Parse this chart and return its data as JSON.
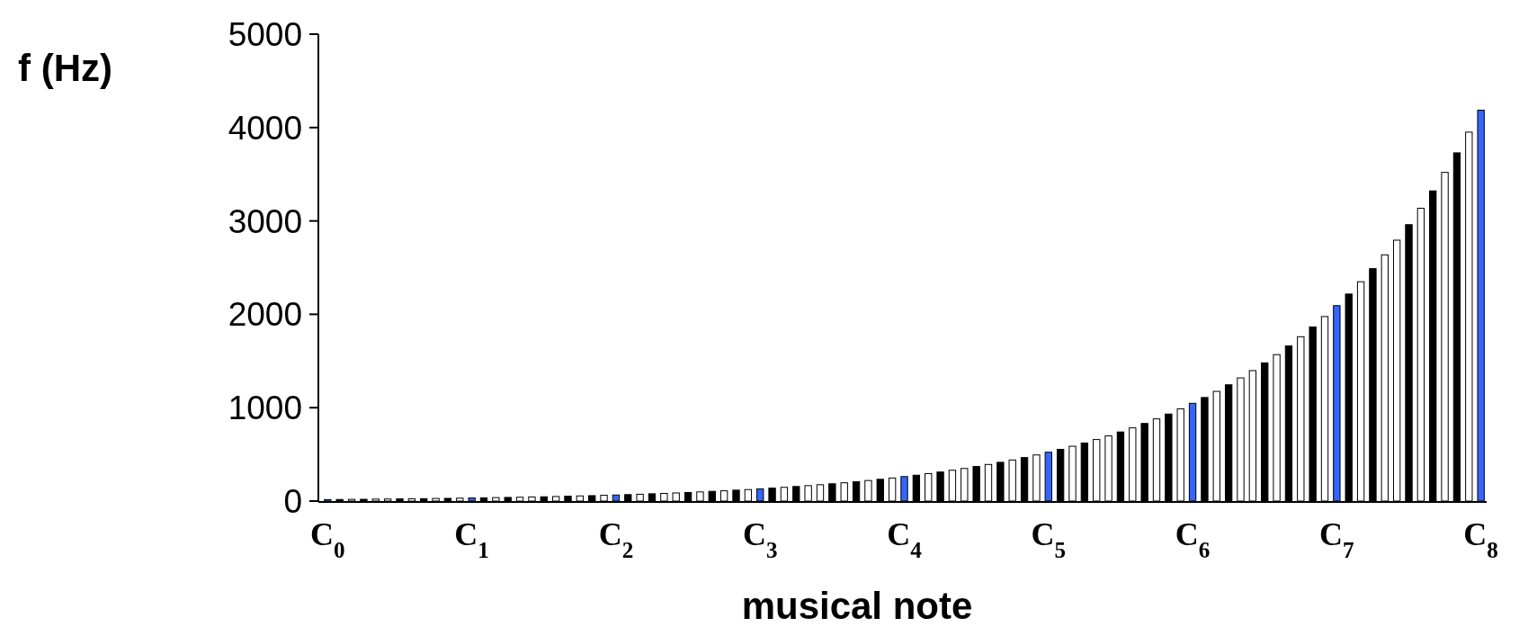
{
  "chart_data": {
    "type": "bar",
    "ylabel": "f (Hz)",
    "xlabel": "musical note",
    "categories": [
      "C$_{0}$",
      null,
      null,
      null,
      null,
      null,
      null,
      null,
      null,
      null,
      null,
      null,
      "C$_{1}$",
      null,
      null,
      null,
      null,
      null,
      null,
      null,
      null,
      null,
      null,
      null,
      "C$_{2}$",
      null,
      null,
      null,
      null,
      null,
      null,
      null,
      null,
      null,
      null,
      null,
      "C$_{3}$",
      null,
      null,
      null,
      null,
      null,
      null,
      null,
      null,
      null,
      null,
      null,
      "C$_{4}$",
      null,
      null,
      null,
      null,
      null,
      null,
      null,
      null,
      null,
      null,
      null,
      "C$_{5}$",
      null,
      null,
      null,
      null,
      null,
      null,
      null,
      null,
      null,
      null,
      null,
      "C$_{6}$",
      null,
      null,
      null,
      null,
      null,
      null,
      null,
      null,
      null,
      null,
      null,
      "C$_{7}$",
      null,
      null,
      null,
      null,
      null,
      null,
      null,
      null,
      null,
      null,
      null,
      "C$_{8}$"
    ],
    "values": [
      16,
      17,
      18,
      19,
      21,
      22,
      23,
      25,
      26,
      28,
      29,
      31,
      33,
      35,
      37,
      39,
      41,
      44,
      46,
      49,
      52,
      55,
      58,
      62,
      65,
      69,
      73,
      78,
      82,
      87,
      92,
      98,
      104,
      110,
      117,
      123,
      131,
      139,
      147,
      156,
      165,
      175,
      185,
      196,
      208,
      220,
      233,
      247,
      262,
      277,
      294,
      311,
      330,
      349,
      370,
      392,
      415,
      440,
      466,
      494,
      523,
      554,
      587,
      622,
      659,
      698,
      740,
      784,
      831,
      880,
      932,
      988,
      1047,
      1109,
      1175,
      1245,
      1319,
      1397,
      1480,
      1568,
      1661,
      1760,
      1865,
      1976,
      2093,
      2217,
      2349,
      2489,
      2637,
      2794,
      2960,
      3136,
      3322,
      3520,
      3729,
      3951,
      4186
    ],
    "colors": [
      "#3366ff",
      "#000000",
      "#ffffff",
      "#000000",
      "#ffffff",
      "#ffffff",
      "#000000",
      "#ffffff",
      "#000000",
      "#ffffff",
      "#000000",
      "#ffffff",
      "#3366ff",
      "#000000",
      "#ffffff",
      "#000000",
      "#ffffff",
      "#ffffff",
      "#000000",
      "#ffffff",
      "#000000",
      "#ffffff",
      "#000000",
      "#ffffff",
      "#3366ff",
      "#000000",
      "#ffffff",
      "#000000",
      "#ffffff",
      "#ffffff",
      "#000000",
      "#ffffff",
      "#000000",
      "#ffffff",
      "#000000",
      "#ffffff",
      "#3366ff",
      "#000000",
      "#ffffff",
      "#000000",
      "#ffffff",
      "#ffffff",
      "#000000",
      "#ffffff",
      "#000000",
      "#ffffff",
      "#000000",
      "#ffffff",
      "#3366ff",
      "#000000",
      "#ffffff",
      "#000000",
      "#ffffff",
      "#ffffff",
      "#000000",
      "#ffffff",
      "#000000",
      "#ffffff",
      "#000000",
      "#ffffff",
      "#3366ff",
      "#000000",
      "#ffffff",
      "#000000",
      "#ffffff",
      "#ffffff",
      "#000000",
      "#ffffff",
      "#000000",
      "#ffffff",
      "#000000",
      "#ffffff",
      "#3366ff",
      "#000000",
      "#ffffff",
      "#000000",
      "#ffffff",
      "#ffffff",
      "#000000",
      "#ffffff",
      "#000000",
      "#ffffff",
      "#000000",
      "#ffffff",
      "#3366ff",
      "#000000",
      "#ffffff",
      "#000000",
      "#ffffff",
      "#ffffff",
      "#000000",
      "#ffffff",
      "#000000",
      "#ffffff",
      "#000000",
      "#ffffff",
      "#3366ff"
    ],
    "ylim": [
      0,
      5000
    ],
    "yticks": [
      0,
      1000,
      2000,
      3000,
      4000,
      5000
    ]
  }
}
